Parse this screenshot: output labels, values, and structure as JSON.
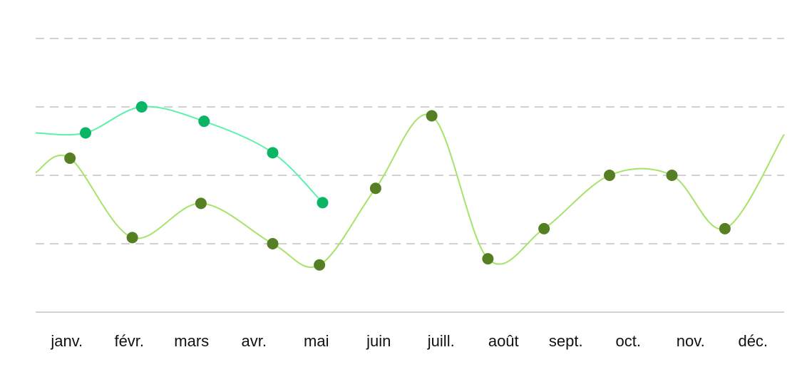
{
  "chart_data": {
    "type": "line",
    "title": "",
    "xlabel": "",
    "ylabel": "",
    "ylim": [
      0,
      4
    ],
    "grid": true,
    "y_axis_labels_visible": false,
    "categories": [
      "janv.",
      "févr.",
      "mars",
      "avr.",
      "mai",
      "juin",
      "juill.",
      "août",
      "sept.",
      "oct.",
      "nov.",
      "déc."
    ],
    "series": [
      {
        "color": "#5df2a9",
        "point_color": "#0bb566",
        "x": [
          0.3,
          1.2,
          2.2,
          3.3,
          4.1
        ],
        "y": [
          2.62,
          3.0,
          2.79,
          2.33,
          1.6
        ]
      },
      {
        "color": "#a6e36a",
        "point_color": "#567f24",
        "x": [
          0.05,
          1.05,
          2.15,
          3.3,
          4.05,
          4.95,
          5.85,
          6.75,
          7.65,
          8.7,
          9.7,
          10.55
        ],
        "y": [
          2.25,
          1.09,
          1.59,
          1.0,
          0.69,
          1.81,
          2.87,
          0.78,
          1.22,
          2.0,
          2.0,
          1.22
        ]
      }
    ]
  }
}
